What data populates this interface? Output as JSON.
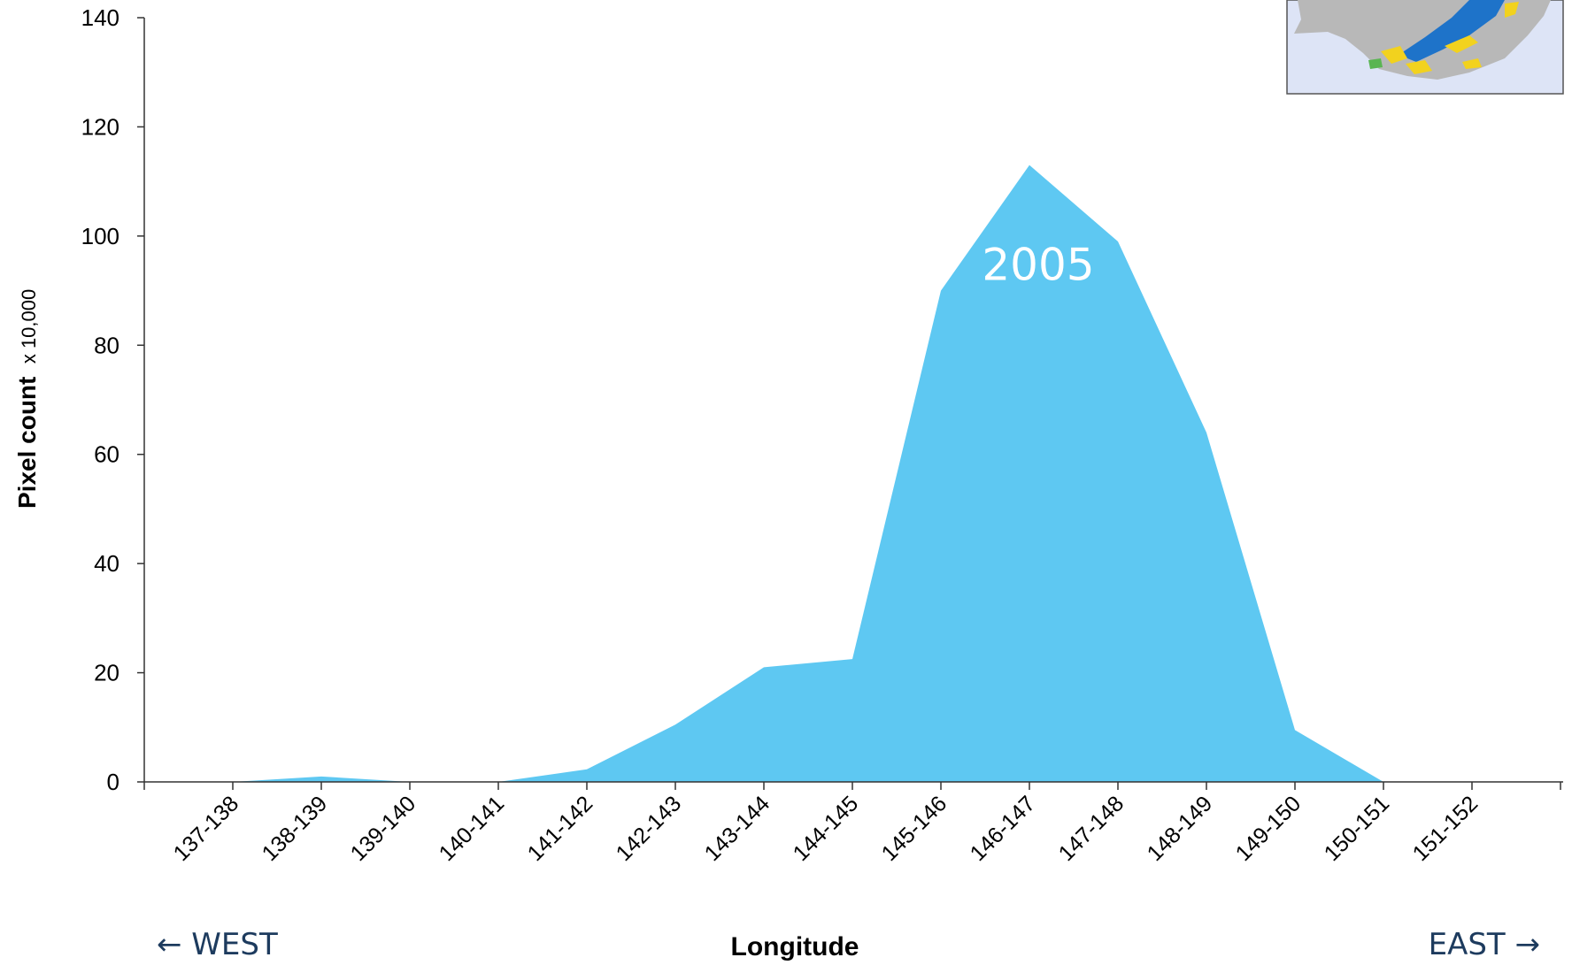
{
  "chart_data": {
    "type": "area",
    "categories": [
      "137-138",
      "138-139",
      "139-140",
      "140-141",
      "141-142",
      "142-143",
      "143-144",
      "144-145",
      "145-146",
      "146-147",
      "147-148",
      "148-149",
      "149-150",
      "150-151",
      "151-152"
    ],
    "series": [
      {
        "name": "2005",
        "values": [
          0,
          1,
          0,
          0,
          2.3,
          10.5,
          21,
          22.5,
          90,
          113,
          99,
          64,
          9.5,
          0,
          0
        ]
      }
    ],
    "ylabel": "Pixel count",
    "ylabel_unit": "x 10,000",
    "xlabel": "Longitude",
    "ylim": [
      0,
      140
    ],
    "yticks": [
      0,
      20,
      40,
      60,
      80,
      100,
      120,
      140
    ],
    "grid": false,
    "fill_color": "#5ec8f2",
    "direction_left": "← WEST",
    "direction_right": "EAST →"
  },
  "inset_map": {
    "icon": "australia-map-inset-icon"
  }
}
